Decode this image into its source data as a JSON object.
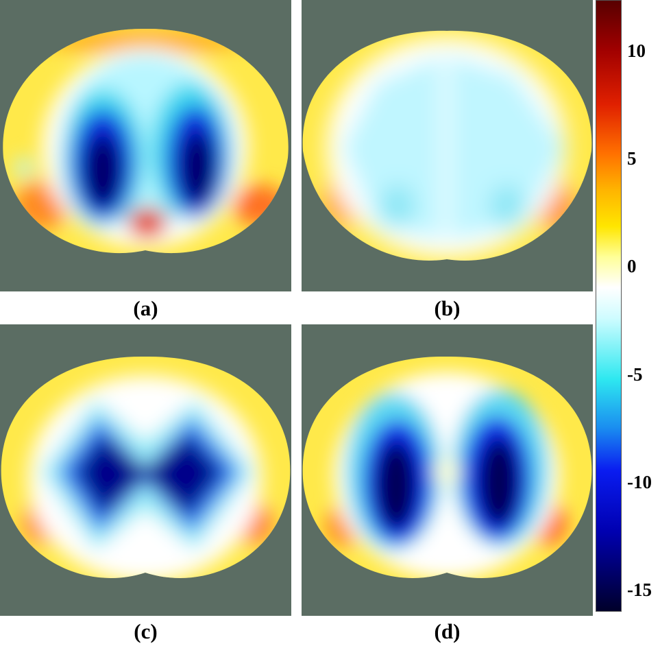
{
  "panels": [
    {
      "id": "a",
      "caption": "(a)"
    },
    {
      "id": "b",
      "caption": "(b)"
    },
    {
      "id": "c",
      "caption": "(c)"
    },
    {
      "id": "d",
      "caption": "(d)"
    }
  ],
  "colorbar": {
    "ticks": [
      "10",
      "5",
      "0",
      "-5",
      "-10",
      "-15"
    ],
    "tick_values": [
      10,
      5,
      0,
      -5,
      -10,
      -15
    ],
    "range": [
      -16,
      12.4
    ]
  },
  "chart_data": {
    "type": "heatmap",
    "title": "",
    "panel_labels": [
      "(a)",
      "(b)",
      "(c)",
      "(d)"
    ],
    "colorbar_ticks": [
      10,
      5,
      0,
      -5,
      -10,
      -15
    ],
    "colorbar_range": [
      -16,
      12.4
    ],
    "colormap": "jet",
    "background_color": "#5b6d63"
  }
}
